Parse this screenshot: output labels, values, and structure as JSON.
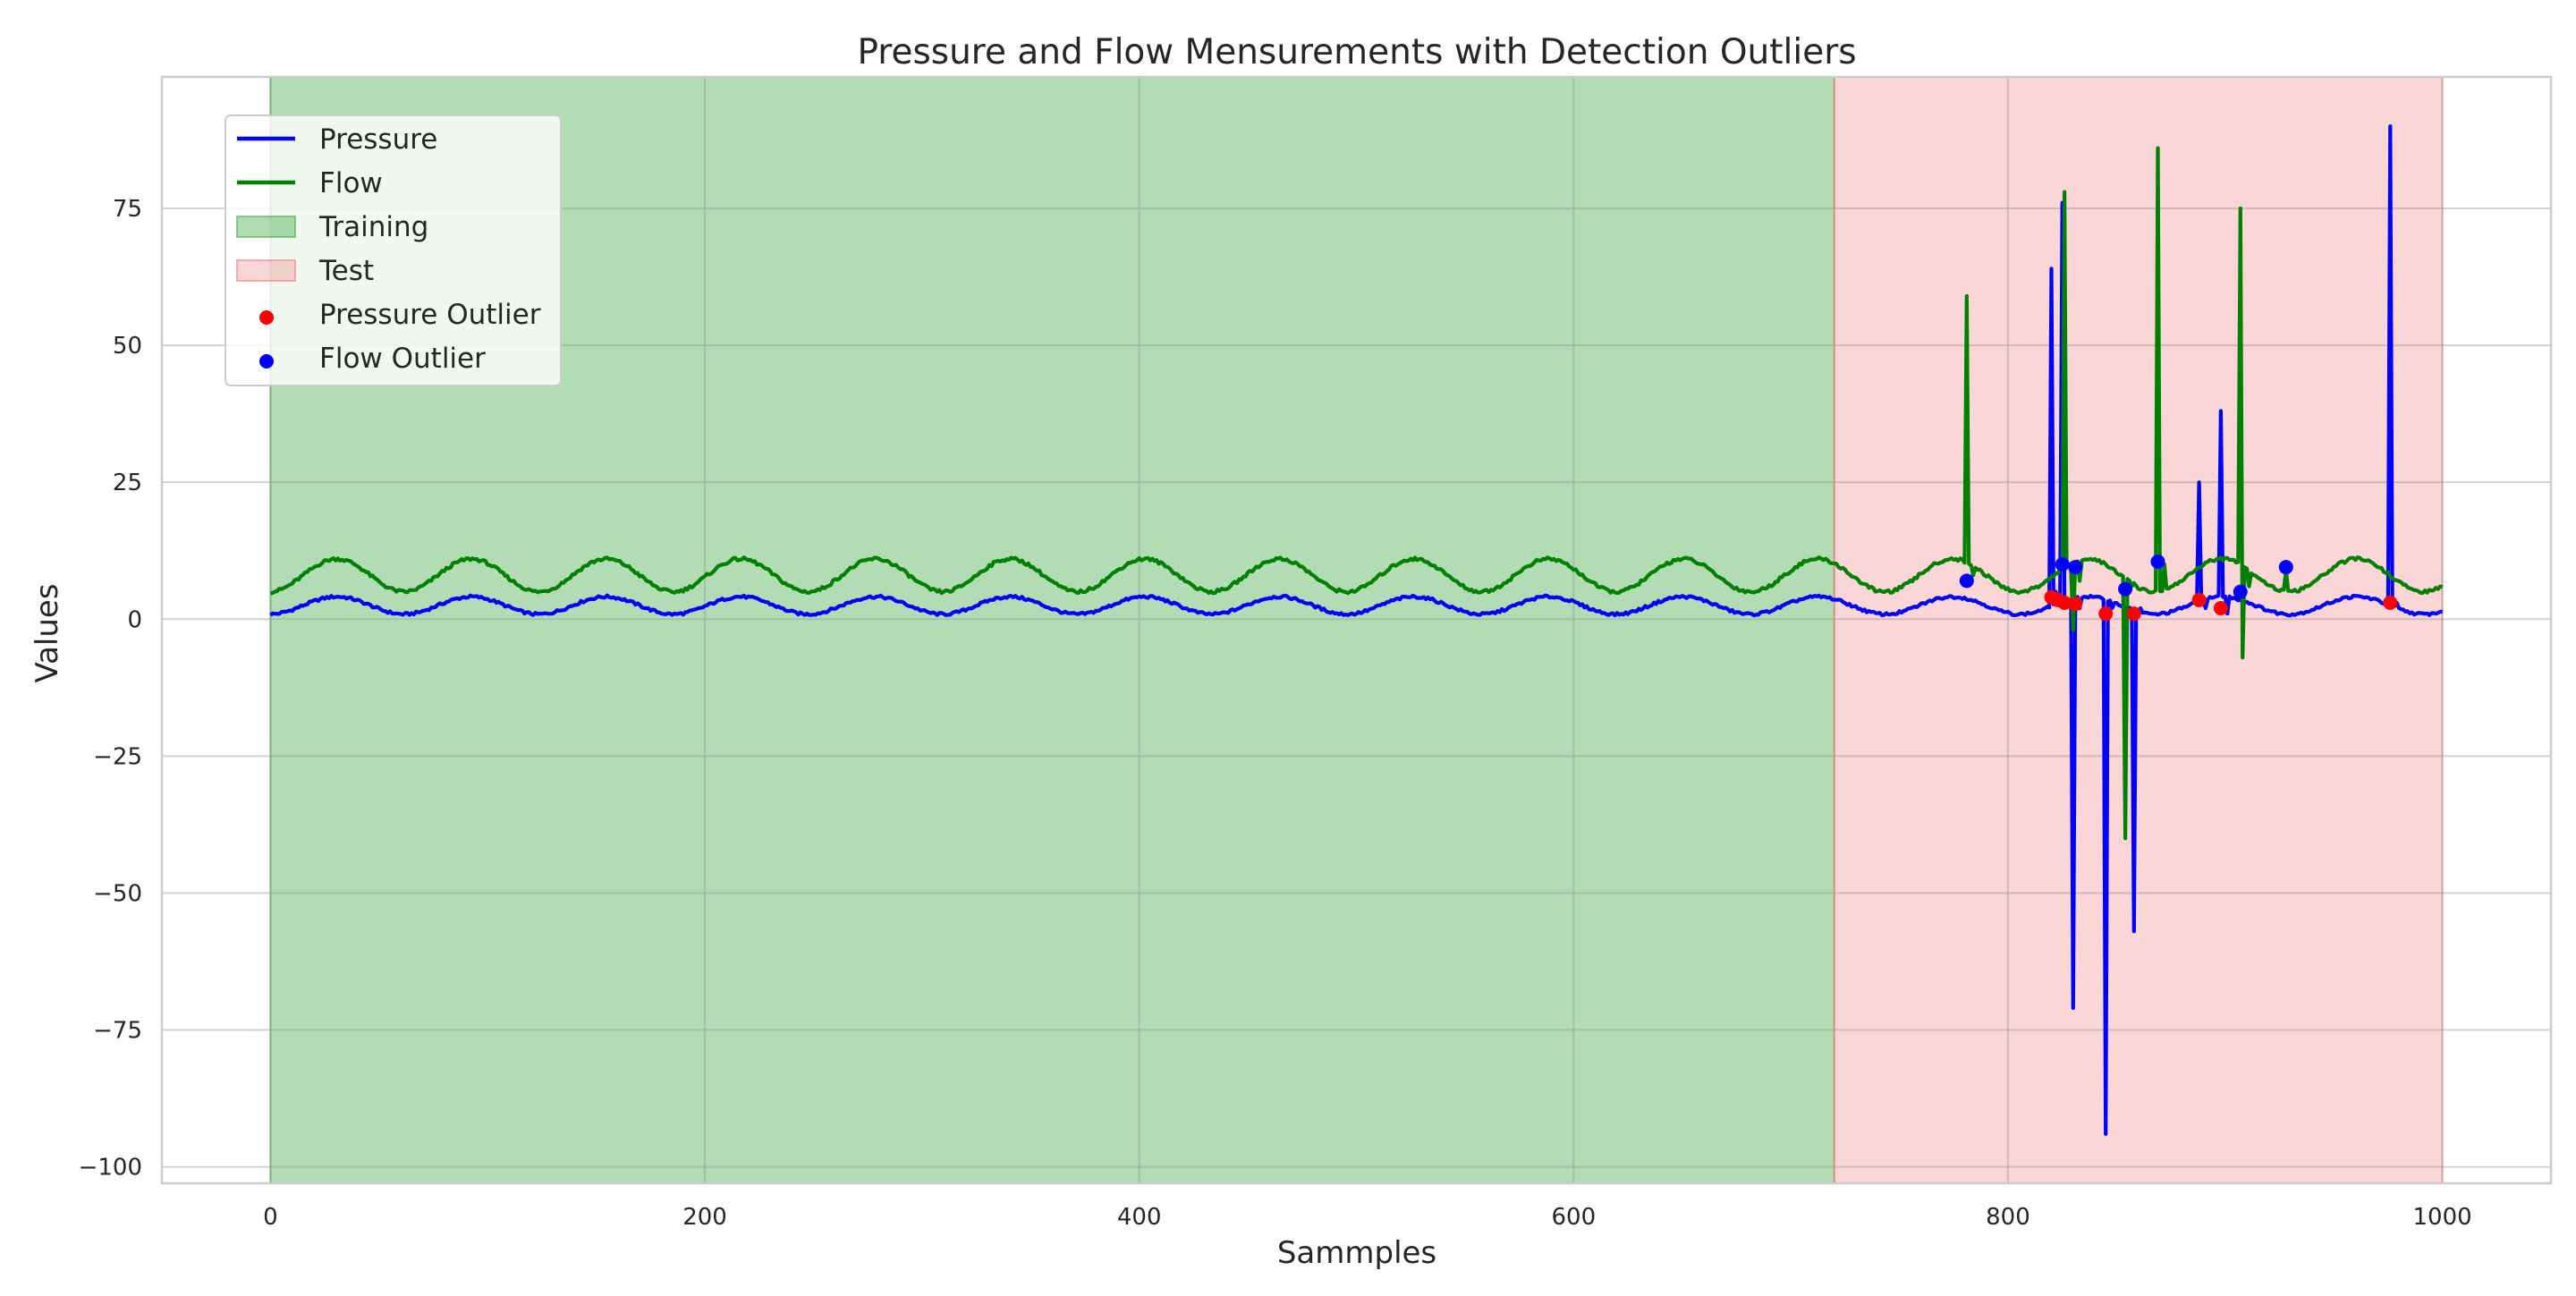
{
  "chart_data": {
    "type": "line",
    "title": "Pressure and Flow Mensurements with Detection Outliers",
    "xlabel": "Sammples",
    "ylabel": "Values",
    "xlim": [
      -50,
      1050
    ],
    "ylim": [
      -103,
      99
    ],
    "xticks": [
      0,
      200,
      400,
      600,
      800,
      1000
    ],
    "yticks": [
      -100,
      -75,
      -50,
      -25,
      0,
      25,
      50,
      75
    ],
    "ytick_labels": [
      "−100",
      "−75",
      "−50",
      "−25",
      "0",
      "25",
      "50",
      "75"
    ],
    "grid": true,
    "legend_position": "top-left",
    "regions": [
      {
        "name": "Training",
        "x_start": 0,
        "x_end": 720,
        "color": "#4caf50"
      },
      {
        "name": "Test",
        "x_start": 720,
        "x_end": 1000,
        "color": "#f08080"
      }
    ],
    "series": [
      {
        "name": "Pressure",
        "color": "#0000ff",
        "base": {
          "mean": 2.5,
          "amplitude": 1.6,
          "period": 62,
          "noise": 0.25
        },
        "spikes": [
          [
            820,
            64
          ],
          [
            822,
            5
          ],
          [
            825,
            76
          ],
          [
            828,
            3
          ],
          [
            830,
            -71
          ],
          [
            833,
            2
          ],
          [
            845,
            -94
          ],
          [
            848,
            2
          ],
          [
            858,
            -57
          ],
          [
            861,
            2
          ],
          [
            888,
            25
          ],
          [
            891,
            2
          ],
          [
            898,
            38
          ],
          [
            901,
            1
          ],
          [
            976,
            90
          ],
          [
            979,
            3
          ]
        ]
      },
      {
        "name": "Flow",
        "color": "#008000",
        "base": {
          "mean": 8,
          "amplitude": 3,
          "period": 62,
          "noise": 0.3
        },
        "spikes": [
          [
            781,
            59
          ],
          [
            784,
            8
          ],
          [
            826,
            78
          ],
          [
            829,
            9
          ],
          [
            830,
            -2
          ],
          [
            833,
            7
          ],
          [
            854,
            -40
          ],
          [
            857,
            6
          ],
          [
            869,
            86
          ],
          [
            872,
            10
          ],
          [
            907,
            75
          ],
          [
            908,
            -7
          ],
          [
            911,
            6
          ],
          [
            928,
            9
          ]
        ]
      }
    ],
    "outliers": [
      {
        "name": "Pressure Outlier",
        "color": "#ff0000",
        "points": [
          [
            820,
            4
          ],
          [
            823,
            3.5
          ],
          [
            826,
            3
          ],
          [
            831,
            2.8
          ],
          [
            845,
            1
          ],
          [
            858,
            1
          ],
          [
            888,
            3.5
          ],
          [
            898,
            2
          ],
          [
            976,
            3
          ]
        ]
      },
      {
        "name": "Flow Outlier",
        "color": "#0000ff",
        "points": [
          [
            781,
            7
          ],
          [
            825,
            10
          ],
          [
            831,
            9.5
          ],
          [
            854,
            5.5
          ],
          [
            869,
            10.5
          ],
          [
            907,
            5
          ],
          [
            928,
            9.5
          ]
        ]
      }
    ],
    "legend": [
      {
        "label": "Pressure",
        "kind": "line",
        "color": "#0000ff"
      },
      {
        "label": "Flow",
        "kind": "line",
        "color": "#008000"
      },
      {
        "label": "Training",
        "kind": "patch",
        "color": "#4caf50"
      },
      {
        "label": "Test",
        "kind": "patch",
        "color": "#f08080"
      },
      {
        "label": "Pressure Outlier",
        "kind": "dot",
        "color": "#ff0000"
      },
      {
        "label": "Flow Outlier",
        "kind": "dot",
        "color": "#0000ff"
      }
    ]
  }
}
